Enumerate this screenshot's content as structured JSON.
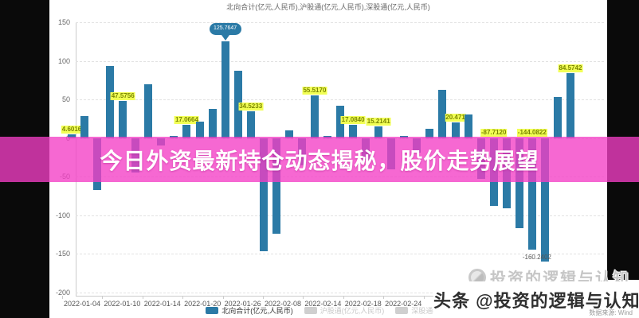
{
  "banner": {
    "title": "今日外资最新持仓动态揭秘，股价走势展望",
    "bg_color": "#f33ec5"
  },
  "chart_data": {
    "type": "bar",
    "title": "北向合计(亿元,人民币),沪股通(亿元,人民币),深股通(亿元,人民币)",
    "series_name": "北向合计(亿元,人民币)",
    "ylabel": "",
    "xlabel": "",
    "ylim": [
      -200,
      150
    ],
    "grid": true,
    "y_ticks": [
      150,
      100,
      50,
      0,
      -50,
      -100,
      -150,
      -200
    ],
    "x_tick_labels": [
      "2022-01-04",
      "2022-01-10",
      "2022-01-14",
      "2022-01-20",
      "2022-01-26",
      "2022-02-08",
      "2022-02-14",
      "2022-02-18",
      "2022-02-24",
      "2022"
    ],
    "values": [
      4.6016,
      28.3,
      -66.8,
      93.8,
      47.5756,
      -44.5,
      69.8,
      -9.2,
      3.1,
      17.0664,
      21.5,
      37.8,
      125.7647,
      87.6,
      34.5233,
      -146.3,
      -124.2,
      10.3,
      -35.5,
      55.517,
      3.2,
      42.4,
      17.084,
      -28.6,
      15.2141,
      -40.2,
      2.5,
      -18.4,
      12.1,
      62.7,
      20.471,
      30.4,
      -52.3,
      -87.712,
      -91.0,
      -116.5,
      -144.0822,
      -160.2402,
      53.1,
      84.5742
    ],
    "bar_value_labels": {
      "0": "4.6016",
      "4": "47.5756",
      "9": "17.0664",
      "14": "34.5233",
      "19": "55.5170",
      "22": "17.0840",
      "24": "15.2141",
      "30": "20.471",
      "33": "-87.7120",
      "36": "-144.0822",
      "39": "84.5742"
    },
    "max_marker": {
      "index": 12,
      "text": "125.7647"
    },
    "min_label": {
      "index": 37,
      "text": "-160.2402"
    },
    "bar_color": "#2b7aa6",
    "legend_position": "bottom",
    "legend": [
      {
        "label": "北向合计(亿元,人民币)",
        "active": true,
        "color": "#2b7aa6"
      },
      {
        "label": "沪股通(亿元,人民币)",
        "active": false,
        "color": "#cfcfcf"
      },
      {
        "label": "深股通(亿元,人民币)",
        "active": false,
        "color": "#cfcfcf"
      }
    ]
  },
  "watermark": {
    "brand_line": "投资的逻辑与认知",
    "handle_line": "头条 @投资的逻辑与认知",
    "source": "数据来源: Wind"
  }
}
